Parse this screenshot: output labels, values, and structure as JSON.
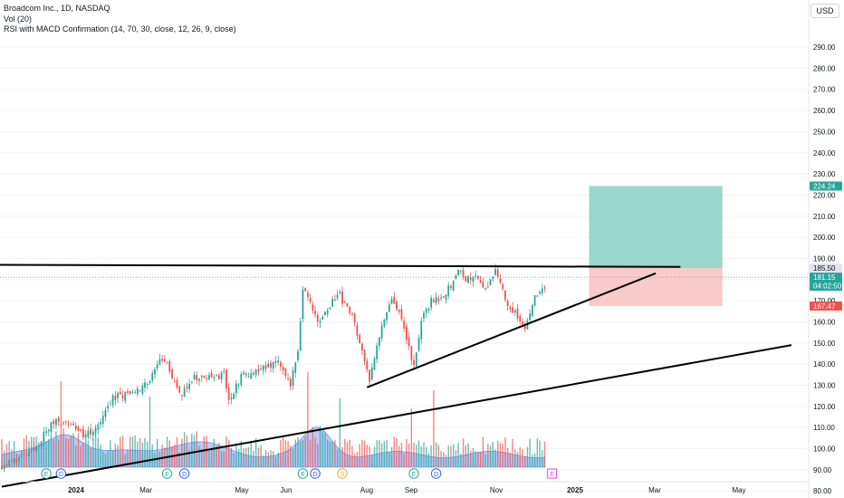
{
  "legend": {
    "title": "Broadcom Inc., 1D, NASDAQ",
    "vol": "Vol (20)",
    "indicator": "RSI with MACD Confirmation (14, 70, 30, close, 12, 26, 9, close)"
  },
  "currency": "USD",
  "colors": {
    "up": "#26a69a",
    "down": "#ef5350",
    "volume_ma": "#7b9ef0",
    "target_zone": "#7fcdbf",
    "stop_zone": "#f7b4b4",
    "lines": "#000000"
  },
  "chart_data": {
    "type": "candlestick",
    "x_axis_labels": [
      "2024",
      "Mar",
      "May",
      "Jun",
      "Aug",
      "Sep",
      "Nov",
      "2025",
      "Mar",
      "May"
    ],
    "y_axis_ticks": [
      "290.00",
      "280.00",
      "270.00",
      "260.00",
      "250.00",
      "240.00",
      "230.00",
      "220.00",
      "210.00",
      "200.00",
      "190.00",
      "180.00",
      "170.00",
      "160.00",
      "150.00",
      "140.00",
      "130.00",
      "120.00",
      "110.00",
      "100.00",
      "90.00",
      "80.00"
    ],
    "ylim": [
      80,
      295
    ],
    "price_labels": {
      "target": "224.24",
      "resistance": "185.50",
      "last_price": "181.15",
      "countdown": "04:02:50",
      "stop": "167.47"
    },
    "levels": {
      "target": 224.24,
      "entry": 185.5,
      "stop": 167.47,
      "last": 181.15
    },
    "trendlines": [
      {
        "name": "resistance",
        "from": [
          -3,
          187
        ],
        "to": [
          275,
          186
        ]
      },
      {
        "name": "support-short",
        "from": [
          148,
          129
        ],
        "to": [
          265,
          183
        ]
      },
      {
        "name": "support-long",
        "from": [
          0,
          82
        ],
        "to": [
          320,
          149
        ]
      }
    ],
    "event_markers": [
      "E",
      "D",
      "E",
      "D",
      "E",
      "D",
      "S",
      "E",
      "D",
      "E"
    ],
    "price_path": [
      [
        0,
        92
      ],
      [
        8,
        96
      ],
      [
        12,
        98
      ],
      [
        18,
        108
      ],
      [
        22,
        114
      ],
      [
        28,
        112
      ],
      [
        33,
        106
      ],
      [
        38,
        110
      ],
      [
        45,
        124
      ],
      [
        55,
        128
      ],
      [
        60,
        131
      ],
      [
        64,
        143
      ],
      [
        68,
        138
      ],
      [
        72,
        125
      ],
      [
        78,
        134
      ],
      [
        85,
        133
      ],
      [
        90,
        135
      ],
      [
        92,
        122
      ],
      [
        97,
        134
      ],
      [
        105,
        137
      ],
      [
        112,
        142
      ],
      [
        117,
        131
      ],
      [
        120,
        145
      ],
      [
        122,
        176
      ],
      [
        128,
        160
      ],
      [
        133,
        168
      ],
      [
        137,
        175
      ],
      [
        138,
        170
      ],
      [
        142,
        163
      ],
      [
        145,
        150
      ],
      [
        147,
        143
      ],
      [
        149,
        133
      ],
      [
        154,
        159
      ],
      [
        158,
        170
      ],
      [
        162,
        162
      ],
      [
        165,
        148
      ],
      [
        167,
        139
      ],
      [
        170,
        160
      ],
      [
        174,
        170
      ],
      [
        178,
        172
      ],
      [
        182,
        177
      ],
      [
        186,
        185
      ],
      [
        188,
        180
      ],
      [
        192,
        182
      ],
      [
        196,
        176
      ],
      [
        200,
        184
      ],
      [
        204,
        171
      ],
      [
        208,
        164
      ],
      [
        212,
        158
      ],
      [
        216,
        172
      ],
      [
        220,
        176
      ]
    ],
    "volume_spikes": [
      {
        "day": 24,
        "value": 95
      },
      {
        "day": 60,
        "value": 78
      },
      {
        "day": 124,
        "value": 105
      },
      {
        "day": 137,
        "value": 76
      },
      {
        "day": 175,
        "value": 85
      },
      {
        "day": 166,
        "value": 65
      }
    ]
  }
}
